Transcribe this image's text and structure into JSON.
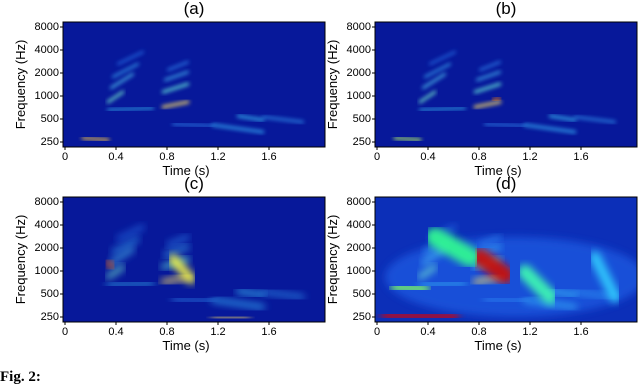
{
  "figure": {
    "panels": [
      {
        "title": "(a)",
        "ylabel": "Frequency (Hz)",
        "xlabel": "Time (s)",
        "yticks": [
          "8000",
          "4000",
          "2000",
          "1000",
          "500",
          "250"
        ],
        "xticks": [
          "0",
          "0.4",
          "0.8",
          "1.2",
          "1.6"
        ]
      },
      {
        "title": "(b)",
        "ylabel": "Frequency (Hz)",
        "xlabel": "Time (s)",
        "yticks": [
          "8000",
          "4000",
          "2000",
          "1000",
          "500",
          "250"
        ],
        "xticks": [
          "0",
          "0.4",
          "0.8",
          "1.2",
          "1.6"
        ]
      },
      {
        "title": "(c)",
        "ylabel": "Frequency (Hz)",
        "xlabel": "Time (s)",
        "yticks": [
          "8000",
          "4000",
          "2000",
          "1000",
          "500",
          "250"
        ],
        "xticks": [
          "0",
          "0.4",
          "0.8",
          "1.2",
          "1.6"
        ]
      },
      {
        "title": "(d)",
        "ylabel": "Frequency (Hz)",
        "xlabel": "Time (s)",
        "yticks": [
          "8000",
          "4000",
          "2000",
          "1000",
          "500",
          "250"
        ],
        "xticks": [
          "0",
          "0.4",
          "0.8",
          "1.2",
          "1.6"
        ]
      }
    ],
    "caption": "Fig. 2:"
  }
}
